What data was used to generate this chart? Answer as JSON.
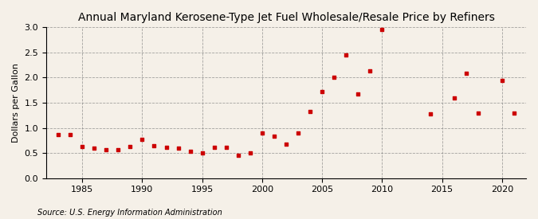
{
  "title": "Annual Maryland Kerosene-Type Jet Fuel Wholesale/Resale Price by Refiners",
  "ylabel": "Dollars per Gallon",
  "source": "Source: U.S. Energy Information Administration",
  "background_color": "#f5f0e8",
  "marker_color": "#cc0000",
  "years": [
    1983,
    1984,
    1985,
    1986,
    1987,
    1988,
    1989,
    1990,
    1991,
    1992,
    1993,
    1994,
    1995,
    1996,
    1997,
    1998,
    1999,
    2000,
    2001,
    2002,
    2003,
    2004,
    2005,
    2006,
    2007,
    2008,
    2009,
    2010,
    2014,
    2016,
    2017,
    2018,
    2020,
    2021
  ],
  "values": [
    0.87,
    0.87,
    0.63,
    0.6,
    0.57,
    0.57,
    0.63,
    0.78,
    0.65,
    0.62,
    0.6,
    0.54,
    0.51,
    0.62,
    0.62,
    0.45,
    0.5,
    0.9,
    0.83,
    0.68,
    0.9,
    1.32,
    1.72,
    2.0,
    2.45,
    1.68,
    2.13,
    2.95,
    1.28,
    1.6,
    2.08,
    1.3,
    1.95,
    1.3
  ],
  "xlim": [
    1982,
    2022
  ],
  "ylim": [
    0.0,
    3.0
  ],
  "xticks": [
    1985,
    1990,
    1995,
    2000,
    2005,
    2010,
    2015,
    2020
  ],
  "yticks": [
    0.0,
    0.5,
    1.0,
    1.5,
    2.0,
    2.5,
    3.0
  ],
  "title_fontsize": 10,
  "label_fontsize": 8,
  "tick_fontsize": 8,
  "source_fontsize": 7
}
